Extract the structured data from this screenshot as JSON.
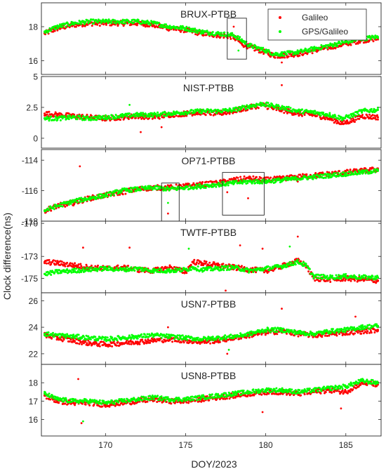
{
  "figure": {
    "ylabel": "Clock difference(ns)",
    "xlabel": "DOY/2023",
    "xticks": [
      170,
      175,
      180,
      185
    ],
    "xlim": [
      166,
      187.2
    ]
  },
  "legend": {
    "placement": "top-right of first panel",
    "items": [
      {
        "label": "Galileo",
        "color": "#ff0000"
      },
      {
        "label": "GPS/Galileo",
        "color": "#00ff00"
      }
    ]
  },
  "chart_data": [
    {
      "type": "scatter",
      "title": "BRUX-PTBB",
      "ylim": [
        15.2,
        19.4
      ],
      "yticks": [
        16,
        18
      ],
      "yticklabels": [
        "16",
        "18"
      ],
      "series": [
        {
          "name": "Galileo",
          "color": "#ff0000",
          "x": [
            166.2,
            167,
            168,
            169,
            170,
            171,
            172,
            173,
            174,
            175,
            176,
            177,
            178,
            178.5,
            179,
            180,
            180.5,
            181,
            182,
            183,
            184,
            185,
            186,
            187
          ],
          "y": [
            17.6,
            17.9,
            18.1,
            18.2,
            18.2,
            18.2,
            18.2,
            18.1,
            17.9,
            17.8,
            17.6,
            17.5,
            17.4,
            17.0,
            16.8,
            16.5,
            16.3,
            16.3,
            16.4,
            16.6,
            16.8,
            17.0,
            17.2,
            17.3
          ]
        },
        {
          "name": "GPS/Galileo",
          "color": "#00ff00",
          "x": [
            166.2,
            167,
            168,
            169,
            170,
            171,
            172,
            173,
            174,
            175,
            176,
            177,
            178,
            178.5,
            179,
            180,
            180.5,
            181,
            182,
            183,
            184,
            185,
            186,
            187
          ],
          "y": [
            17.7,
            18.0,
            18.2,
            18.3,
            18.3,
            18.3,
            18.3,
            18.2,
            18.0,
            17.9,
            17.7,
            17.6,
            17.5,
            17.2,
            16.9,
            16.6,
            16.4,
            16.4,
            16.5,
            16.7,
            16.9,
            17.1,
            17.3,
            17.4
          ]
        }
      ],
      "outliers": {
        "x": [
          178.0,
          178.1,
          178.3,
          181.0
        ],
        "y": [
          18.0,
          17.2,
          16.6,
          15.9
        ]
      },
      "boxes": [
        {
          "x": [
            177.6,
            178.8
          ],
          "y": [
            16.1,
            18.5
          ]
        }
      ]
    },
    {
      "type": "scatter",
      "title": "NIST-PTBB",
      "ylim": [
        -0.8,
        5.0
      ],
      "yticks": [
        0,
        2.5,
        5
      ],
      "yticklabels": [
        "0",
        "2.5",
        "5"
      ],
      "series": [
        {
          "name": "Galileo",
          "color": "#ff0000",
          "x": [
            166.2,
            167,
            168,
            169,
            170,
            171,
            172,
            173,
            174,
            175,
            176,
            177,
            178,
            179,
            179.8,
            180.5,
            181,
            182,
            183,
            184,
            184.8,
            185.5,
            186,
            187
          ],
          "y": [
            2.0,
            1.9,
            1.8,
            1.7,
            1.6,
            1.7,
            1.8,
            1.7,
            1.9,
            2.0,
            2.1,
            2.0,
            2.2,
            2.5,
            2.7,
            2.4,
            2.3,
            2.0,
            1.9,
            1.6,
            1.2,
            1.5,
            1.8,
            1.7
          ]
        },
        {
          "name": "GPS/Galileo",
          "color": "#00ff00",
          "x": [
            166.2,
            167,
            168,
            169,
            170,
            171,
            172,
            173,
            174,
            175,
            176,
            177,
            178,
            179,
            179.8,
            180.5,
            181,
            182,
            183,
            184,
            184.8,
            185.5,
            186,
            187
          ],
          "y": [
            1.6,
            1.6,
            1.7,
            1.6,
            1.7,
            1.8,
            1.9,
            1.9,
            2.0,
            2.1,
            2.2,
            2.2,
            2.3,
            2.6,
            2.8,
            2.6,
            2.5,
            2.2,
            2.1,
            1.9,
            1.6,
            1.9,
            2.2,
            2.3
          ]
        }
      ],
      "outliers": {
        "x": [
          172.2,
          173.5,
          171.5,
          181.0
        ],
        "y": [
          0.5,
          0.9,
          2.7,
          4.3
        ]
      }
    },
    {
      "type": "scatter",
      "title": "OP71-PTBB",
      "ylim": [
        -118,
        -113.3
      ],
      "yticks": [
        -118,
        -116,
        -114
      ],
      "yticklabels": [
        "-118",
        "-116",
        "-114"
      ],
      "series": [
        {
          "name": "Galileo",
          "color": "#ff0000",
          "x": [
            166.2,
            167,
            168,
            169,
            170,
            171,
            172,
            173,
            174,
            175,
            176,
            177,
            178,
            179,
            180,
            181,
            182,
            183,
            184,
            185,
            186,
            187
          ],
          "y": [
            -117.3,
            -117.0,
            -116.8,
            -116.5,
            -116.3,
            -116.1,
            -115.9,
            -115.8,
            -115.8,
            -115.7,
            -115.6,
            -115.5,
            -115.3,
            -115.2,
            -115.3,
            -115.2,
            -115.1,
            -115.0,
            -114.9,
            -114.8,
            -114.7,
            -114.6
          ]
        },
        {
          "name": "GPS/Galileo",
          "color": "#00ff00",
          "x": [
            166.2,
            167,
            168,
            169,
            170,
            171,
            172,
            173,
            174,
            175,
            176,
            177,
            178,
            179,
            180,
            181,
            182,
            183,
            184,
            185,
            186,
            187
          ],
          "y": [
            -117.3,
            -117.0,
            -116.7,
            -116.5,
            -116.3,
            -116.0,
            -115.9,
            -115.8,
            -115.9,
            -115.8,
            -115.7,
            -115.6,
            -115.5,
            -115.4,
            -115.4,
            -115.3,
            -115.2,
            -115.1,
            -115.0,
            -114.9,
            -114.8,
            -114.7
          ]
        }
      ],
      "outliers": {
        "x": [
          168.4,
          173.9,
          173.9,
          177.6,
          178.9,
          181.0,
          182.0
        ],
        "y": [
          -114.4,
          -117.5,
          -116.8,
          -116.1,
          -116.5,
          -115.4,
          -115.4
        ]
      },
      "boxes": [
        {
          "x": [
            173.5,
            174.6
          ],
          "y": [
            -118.0,
            -115.5
          ]
        },
        {
          "x": [
            177.3,
            179.9
          ],
          "y": [
            -117.6,
            -114.8
          ]
        }
      ]
    },
    {
      "type": "scatter",
      "title": "TWTF-PTBB",
      "ylim": [
        -176.3,
        -169.8
      ],
      "yticks": [
        -175,
        -173,
        -170
      ],
      "yticklabels": [
        "-175",
        "-173",
        "-170"
      ],
      "series": [
        {
          "name": "Galileo",
          "color": "#ff0000",
          "x": [
            166.2,
            167,
            168,
            169,
            170,
            171,
            172,
            173,
            174,
            175,
            175.5,
            176,
            177,
            178,
            179,
            180,
            181,
            182,
            182.5,
            183,
            184,
            185,
            186,
            187
          ],
          "y": [
            -173.5,
            -173.6,
            -173.8,
            -174.0,
            -174.1,
            -174.0,
            -174.2,
            -174.3,
            -174.0,
            -174.4,
            -173.5,
            -173.6,
            -173.8,
            -174.0,
            -174.2,
            -174.3,
            -173.9,
            -173.4,
            -173.8,
            -175.0,
            -175.1,
            -175.0,
            -175.1,
            -175.2
          ]
        },
        {
          "name": "GPS/Galileo",
          "color": "#00ff00",
          "x": [
            166.2,
            167,
            168,
            169,
            170,
            171,
            172,
            173,
            174,
            175,
            175.5,
            176,
            177,
            178,
            179,
            180,
            181,
            182,
            182.5,
            183,
            184,
            185,
            186,
            187
          ],
          "y": [
            -174.6,
            -174.4,
            -174.3,
            -174.2,
            -174.1,
            -174.2,
            -174.1,
            -174.3,
            -174.3,
            -174.2,
            -174.0,
            -174.2,
            -174.1,
            -174.0,
            -174.3,
            -174.1,
            -173.9,
            -173.5,
            -173.8,
            -174.8,
            -174.9,
            -174.8,
            -174.9,
            -174.9
          ]
        }
      ],
      "outliers": {
        "x": [
          168.6,
          171.5,
          175.2,
          178.4,
          179.8,
          181.5,
          182.0,
          177.5
        ],
        "y": [
          -172.2,
          -172.2,
          -172.3,
          -172.0,
          -172.3,
          -172.1,
          -171.2,
          -176.1
        ]
      }
    },
    {
      "type": "scatter",
      "title": "USN7-PTBB",
      "ylim": [
        21.2,
        26.6
      ],
      "yticks": [
        22,
        24,
        26
      ],
      "yticklabels": [
        "22",
        "24",
        "26"
      ],
      "series": [
        {
          "name": "Galileo",
          "color": "#ff0000",
          "x": [
            166.2,
            167,
            168,
            169,
            170,
            171,
            172,
            173,
            174,
            175,
            176,
            177,
            178,
            179,
            180,
            181,
            182,
            183,
            184,
            185,
            186,
            187
          ],
          "y": [
            23.4,
            23.2,
            23.0,
            22.8,
            22.7,
            22.8,
            22.9,
            23.0,
            23.1,
            23.0,
            22.9,
            23.0,
            23.2,
            23.4,
            23.6,
            23.7,
            23.5,
            23.4,
            23.5,
            23.6,
            23.7,
            23.8
          ]
        },
        {
          "name": "GPS/Galileo",
          "color": "#00ff00",
          "x": [
            166.2,
            167,
            168,
            169,
            170,
            171,
            172,
            173,
            174,
            175,
            176,
            177,
            178,
            179,
            180,
            181,
            182,
            183,
            184,
            185,
            186,
            187
          ],
          "y": [
            23.5,
            23.4,
            23.3,
            23.2,
            23.1,
            23.2,
            23.3,
            23.4,
            23.3,
            23.2,
            23.1,
            23.2,
            23.3,
            23.5,
            23.8,
            23.8,
            23.6,
            23.5,
            23.7,
            23.8,
            24.0,
            24.1
          ]
        }
      ],
      "outliers": {
        "x": [
          173.9,
          177.6,
          177.7,
          181.0,
          185.6
        ],
        "y": [
          24.0,
          22.0,
          22.3,
          25.4,
          24.8
        ]
      }
    },
    {
      "type": "scatter",
      "title": "USN8-PTBB",
      "ylim": [
        15.1,
        19.0
      ],
      "yticks": [
        16,
        17,
        18
      ],
      "yticklabels": [
        "16",
        "17",
        "18"
      ],
      "series": [
        {
          "name": "Galileo",
          "color": "#ff0000",
          "x": [
            166.2,
            167,
            168,
            169,
            170,
            171,
            172,
            173,
            174,
            175,
            176,
            177,
            178,
            179,
            180,
            181,
            182,
            183,
            184,
            185,
            186,
            187
          ],
          "y": [
            17.3,
            17.0,
            16.9,
            16.9,
            16.8,
            16.9,
            17.0,
            17.1,
            17.0,
            17.0,
            17.1,
            17.2,
            17.3,
            17.4,
            17.5,
            17.5,
            17.4,
            17.5,
            17.6,
            17.5,
            18.0,
            17.9
          ]
        },
        {
          "name": "GPS/Galileo",
          "color": "#00ff00",
          "x": [
            166.2,
            167,
            168,
            169,
            170,
            171,
            172,
            173,
            174,
            175,
            176,
            177,
            178,
            179,
            180,
            181,
            182,
            183,
            184,
            185,
            186,
            187
          ],
          "y": [
            17.4,
            17.1,
            17.0,
            17.0,
            16.9,
            17.0,
            17.1,
            17.2,
            17.1,
            17.1,
            17.2,
            17.3,
            17.4,
            17.5,
            17.6,
            17.6,
            17.5,
            17.6,
            17.7,
            17.8,
            18.1,
            18.0
          ]
        }
      ],
      "outliers": {
        "x": [
          168.3,
          168.5,
          168.6,
          179.8,
          184.7
        ],
        "y": [
          18.2,
          15.8,
          15.9,
          16.4,
          16.6
        ]
      }
    }
  ]
}
